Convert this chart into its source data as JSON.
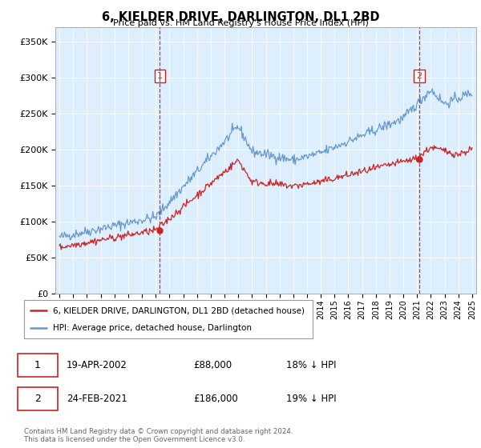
{
  "title": "6, KIELDER DRIVE, DARLINGTON, DL1 2BD",
  "subtitle": "Price paid vs. HM Land Registry's House Price Index (HPI)",
  "ylim": [
    0,
    370000
  ],
  "yticks": [
    0,
    50000,
    100000,
    150000,
    200000,
    250000,
    300000,
    350000
  ],
  "sale1_date_num": 2002.3,
  "sale1_price": 88000,
  "sale1_label": "1",
  "sale2_date_num": 2021.15,
  "sale2_price": 186000,
  "sale2_label": "2",
  "hpi_color": "#6699cc",
  "sale_color": "#cc2222",
  "bg_color": "#ddeeff",
  "legend_sale_label": "6, KIELDER DRIVE, DARLINGTON, DL1 2BD (detached house)",
  "legend_hpi_label": "HPI: Average price, detached house, Darlington",
  "table_row1": [
    "1",
    "19-APR-2002",
    "£88,000",
    "18% ↓ HPI"
  ],
  "table_row2": [
    "2",
    "24-FEB-2021",
    "£186,000",
    "19% ↓ HPI"
  ],
  "footer": "Contains HM Land Registry data © Crown copyright and database right 2024.\nThis data is licensed under the Open Government Licence v3.0.",
  "xlim_start": 1994.7,
  "xlim_end": 2025.3
}
